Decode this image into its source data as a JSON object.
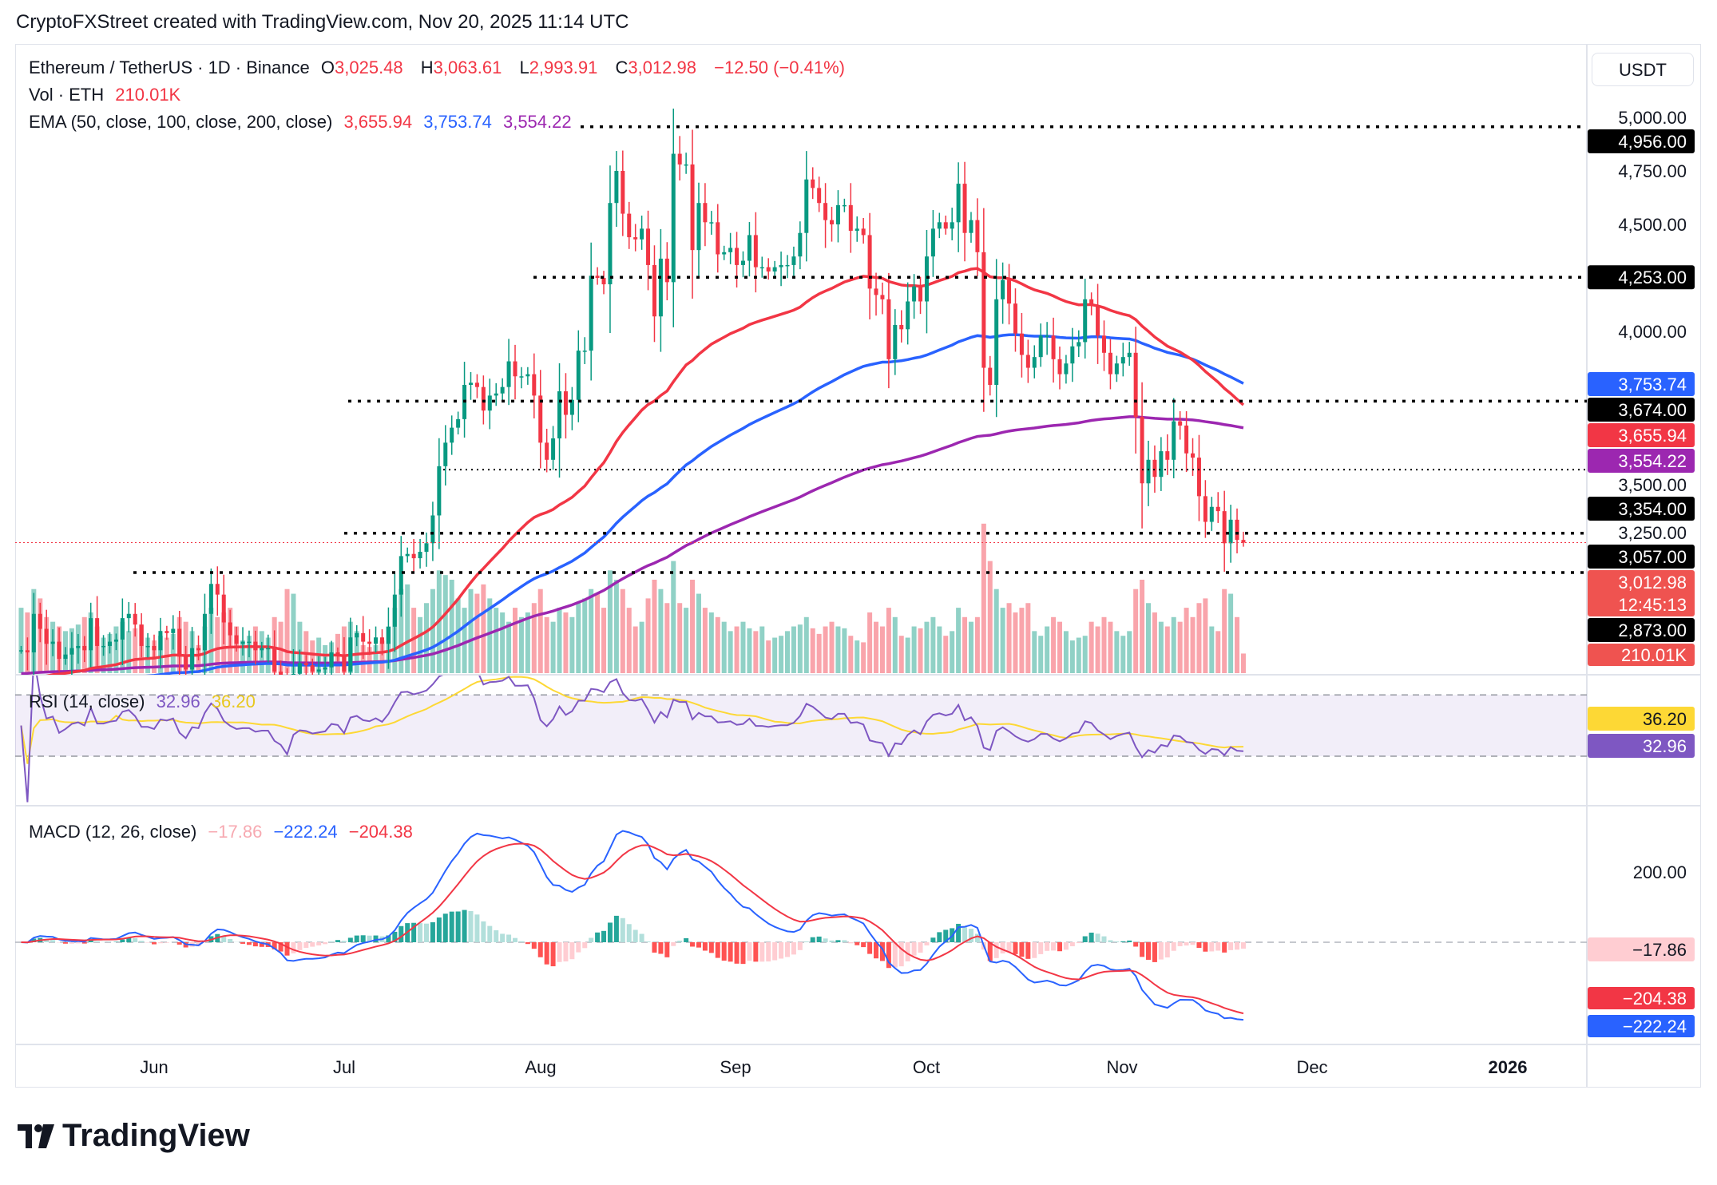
{
  "credit": "CryptoFXStreet created with TradingView.com, Nov 20, 2025 11:14 UTC",
  "legend": {
    "symbol": "Ethereum / TetherUS · 1D · Binance",
    "o_label": "O",
    "o": "3,025.48",
    "h_label": "H",
    "h": "3,063.61",
    "l_label": "L",
    "l": "2,993.91",
    "c_label": "C",
    "c": "3,012.98",
    "change": "−12.50 (−0.41%)",
    "vol_label": "Vol · ETH",
    "vol": "210.01K",
    "ema_label": "EMA (50, close, 100, close, 200, close)",
    "ema50": "3,655.94",
    "ema100": "3,753.74",
    "ema200": "3,554.22",
    "rsi_label": "RSI (14, close)",
    "rsi": "32.96",
    "rsi_ma": "36.20",
    "macd_label": "MACD (12, 26, close)",
    "macd_hist": "−17.86",
    "macd": "−222.24",
    "macd_signal": "−204.38"
  },
  "currency_button": "USDT",
  "logo_text": "TradingView",
  "colors": {
    "up": "#089981",
    "down": "#f23645",
    "ema50": "#f23645",
    "ema100": "#2962ff",
    "ema200": "#9c27b0",
    "rsi": "#7e57c2",
    "rsi_ma": "#fdd835",
    "macd": "#2962ff",
    "signal": "#f23645"
  },
  "chart_data": {
    "type": "candlestick",
    "symbol": "ETHUSDT",
    "interval": "1D",
    "start_date": "2025-05-11",
    "close": [
      2510,
      2500,
      2680,
      2610,
      2540,
      2550,
      2470,
      2490,
      2520,
      2530,
      2510,
      2660,
      2530,
      2530,
      2550,
      2560,
      2660,
      2680,
      2630,
      2530,
      2530,
      2510,
      2600,
      2590,
      2610,
      2480,
      2420,
      2520,
      2510,
      2680,
      2820,
      2770,
      2640,
      2580,
      2540,
      2550,
      2550,
      2510,
      2520,
      2520,
      2410,
      2360,
      2220,
      2400,
      2450,
      2440,
      2410,
      2420,
      2430,
      2500,
      2490,
      2410,
      2570,
      2590,
      2550,
      2540,
      2570,
      2540,
      2620,
      2770,
      2950,
      2960,
      2940,
      2970,
      3010,
      3140,
      3370,
      3480,
      3550,
      3590,
      3750,
      3760,
      3740,
      3630,
      3700,
      3710,
      3740,
      3860,
      3790,
      3790,
      3800,
      3700,
      3480,
      3400,
      3500,
      3720,
      3610,
      3680,
      3910,
      3910,
      4260,
      4250,
      4220,
      4600,
      4750,
      4550,
      4440,
      4430,
      4480,
      4310,
      4070,
      4340,
      4230,
      4830,
      4780,
      4780,
      4380,
      4600,
      4510,
      4510,
      4360,
      4370,
      4390,
      4310,
      4330,
      4450,
      4300,
      4300,
      4280,
      4300,
      4310,
      4310,
      4350,
      4460,
      4710,
      4670,
      4600,
      4520,
      4500,
      4590,
      4590,
      4470,
      4480,
      4450,
      4200,
      4170,
      4150,
      3870,
      4030,
      4010,
      4140,
      4210,
      4140,
      4350,
      4480,
      4510,
      4480,
      4510,
      4690,
      4460,
      4520,
      4370,
      3830,
      3750,
      4150,
      4240,
      4130,
      3990,
      3890,
      3830,
      3880,
      3980,
      3980,
      3870,
      3800,
      3850,
      3930,
      3950,
      4150,
      4120,
      3980,
      3900,
      3800,
      3850,
      3880,
      3900,
      3600,
      3290,
      3400,
      3320,
      3440,
      3400,
      3580,
      3560,
      3430,
      3410,
      3230,
      3110,
      3180,
      3160,
      3010,
      3120,
      3025.48,
      3012.98
    ],
    "last_candle": {
      "open": 3025.48,
      "high": 3063.61,
      "low": 2993.91,
      "close": 3012.98
    },
    "volume_k": [
      700,
      650,
      900,
      800,
      600,
      550,
      500,
      450,
      480,
      520,
      600,
      650,
      500,
      380,
      420,
      500,
      550,
      450,
      480,
      520,
      380,
      350,
      400,
      380,
      420,
      600,
      550,
      450,
      300,
      500,
      700,
      600,
      650,
      700,
      500,
      350,
      400,
      500,
      450,
      380,
      600,
      550,
      900,
      850,
      550,
      450,
      350,
      380,
      300,
      330,
      420,
      500,
      550,
      450,
      300,
      280,
      300,
      350,
      500,
      700,
      900,
      950,
      700,
      600,
      750,
      900,
      1100,
      1050,
      1000,
      800,
      700,
      900,
      850,
      950,
      800,
      700,
      650,
      550,
      700,
      600,
      650,
      750,
      900,
      600,
      550,
      700,
      650,
      600,
      750,
      800,
      900,
      850,
      700,
      1100,
      1000,
      900,
      700,
      500,
      550,
      800,
      1000,
      900,
      750,
      1200,
      750,
      700,
      1000,
      850,
      700,
      650,
      600,
      550,
      450,
      500,
      550,
      480,
      450,
      500,
      350,
      380,
      400,
      450,
      500,
      520,
      600,
      480,
      420,
      500,
      550,
      500,
      480,
      400,
      350,
      330,
      650,
      550,
      500,
      700,
      600,
      400,
      380,
      500,
      480,
      550,
      600,
      500,
      400,
      450,
      700,
      600,
      550,
      600,
      1600,
      1200,
      900,
      700,
      750,
      650,
      700,
      750,
      450,
      400,
      500,
      600,
      550,
      450,
      350,
      380,
      400,
      550,
      500,
      600,
      550,
      450,
      400,
      450,
      900,
      1000,
      750,
      650,
      550,
      500,
      600,
      550,
      700,
      600,
      750,
      800,
      500,
      450,
      900,
      850,
      600,
      210
    ],
    "price_ticks": [
      "5,000.00",
      "4,750.00",
      "4,500.00",
      "4,000.00",
      "3,500.00",
      "3,250.00"
    ],
    "price_tick_values": [
      5000,
      4750,
      4500,
      4000,
      3500,
      3250
    ],
    "levels": [
      4956,
      4253,
      3674,
      3354,
      3057,
      2873
    ],
    "level_labels": [
      "4,956.00",
      "4,253.00",
      "3,674.00",
      "3,354.00",
      "3,057.00",
      "2,873.00"
    ],
    "badges": {
      "ema100": "3,753.74",
      "ema50": "3,655.94",
      "ema200": "3,554.22",
      "last": "3,012.98",
      "countdown": "12:45:13",
      "volume": "210.01K",
      "rsi_ma": "36.20",
      "rsi": "32.96",
      "macd_hist": "−17.86",
      "macd_signal": "−204.38",
      "macd": "−222.24"
    },
    "macd_ticks": [
      "200.00"
    ],
    "x_ticks": [
      "Jun",
      "Jul",
      "Aug",
      "Sep",
      "Oct",
      "Nov",
      "Dec",
      "2026"
    ],
    "rsi_bands": [
      70,
      30
    ]
  }
}
